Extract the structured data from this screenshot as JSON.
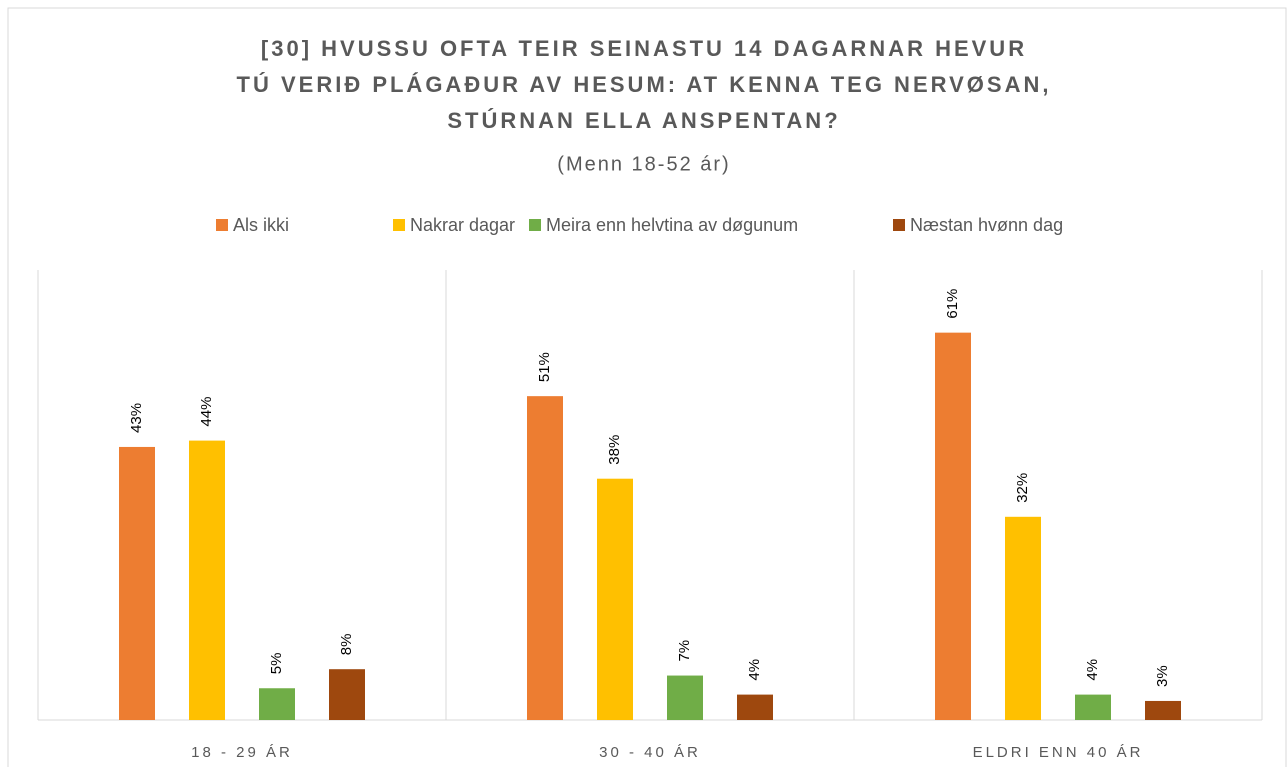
{
  "chart_data": {
    "type": "bar",
    "title": [
      "[30] HVUSSU OFTA TEIR SEINASTU 14 DAGARNAR HEVUR",
      "TÚ VERIÐ PLÁGAÐUR AV HESUM: AT KENNA TEG NERVØSAN,",
      "STÚRNAN ELLA ANSPENTAN?"
    ],
    "subtitle": "(Menn 18-52 ár)",
    "categories": [
      "18 - 29 ÁR",
      "30 - 40 ÁR",
      "ELDRI ENN 40 ÁR"
    ],
    "series": [
      {
        "name": "Als ikki",
        "color": "#ED7D31",
        "values": [
          43,
          51,
          61
        ],
        "value_labels": [
          "43%",
          "51%",
          "61%"
        ]
      },
      {
        "name": "Nakrar dagar",
        "color": "#FFC000",
        "values": [
          44,
          38,
          32
        ],
        "value_labels": [
          "44%",
          "38%",
          "32%"
        ]
      },
      {
        "name": "Meira enn helvtina av døgunum",
        "color": "#70AD47",
        "values": [
          5,
          7,
          4
        ],
        "value_labels": [
          "5%",
          "7%",
          "4%"
        ]
      },
      {
        "name": "Næstan hvønn dag",
        "color": "#9E480E",
        "values": [
          8,
          4,
          3
        ],
        "value_labels": [
          "8%",
          "4%",
          "3%"
        ]
      }
    ],
    "legend": "top"
  }
}
